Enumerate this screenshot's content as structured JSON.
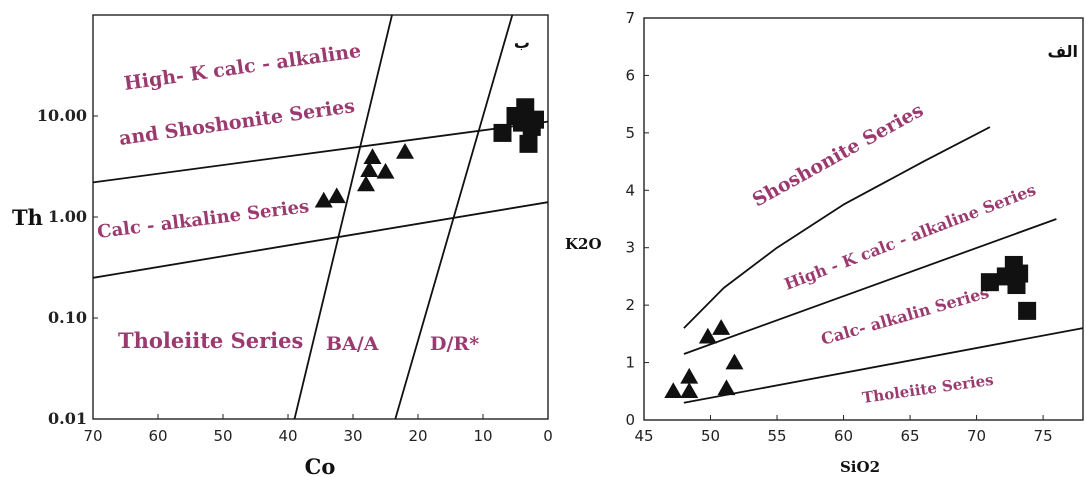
{
  "chart_data": [
    {
      "type": "scatter",
      "panel_label": "ب",
      "xlabel": "Co",
      "ylabel": "Th",
      "xlim": [
        70,
        0
      ],
      "ylim": [
        0.01,
        100
      ],
      "y_scale": "log",
      "x_ticks": [
        "70",
        "60",
        "50",
        "40",
        "30",
        "20",
        "10",
        "0"
      ],
      "y_ticks": [
        "10.00",
        "1.00",
        "0.10",
        "0.01"
      ],
      "region_labels": {
        "highk": "High- K calc - alkaline",
        "shoshonite": "and Shoshonite Series",
        "calc": "Calc - alkaline Series",
        "tholeiite": "Tholeiite Series",
        "ba": "BA/A",
        "dr": "D/R*"
      },
      "boundaries": [
        {
          "points": [
            [
              70,
              2.2
            ],
            [
              0,
              8.8
            ]
          ]
        },
        {
          "points": [
            [
              70,
              0.25
            ],
            [
              0,
              1.4
            ]
          ]
        },
        {
          "points": [
            [
              39,
              0.01
            ],
            [
              24,
              100
            ]
          ]
        },
        {
          "points": [
            [
              23.5,
              0.01
            ],
            [
              5.5,
              100
            ]
          ]
        }
      ],
      "series": [
        {
          "marker": "triangle",
          "points": [
            [
              34.5,
              1.45
            ],
            [
              32.5,
              1.6
            ],
            [
              28,
              2.1
            ],
            [
              27.5,
              2.9
            ],
            [
              27,
              3.9
            ],
            [
              25,
              2.8
            ],
            [
              22,
              4.4
            ]
          ]
        },
        {
          "marker": "square",
          "points": [
            [
              7,
              6.8
            ],
            [
              5,
              10.0
            ],
            [
              3.5,
              12.2
            ],
            [
              2.5,
              7.8
            ],
            [
              3,
              5.3
            ],
            [
              4,
              8.6
            ],
            [
              2,
              9.2
            ]
          ]
        }
      ]
    },
    {
      "type": "scatter",
      "panel_label": "الف",
      "xlabel": "SiO2",
      "ylabel": "K2O",
      "xlim": [
        45,
        78
      ],
      "ylim": [
        0,
        7
      ],
      "x_ticks": [
        "45",
        "50",
        "55",
        "60",
        "65",
        "70",
        "75"
      ],
      "y_ticks": [
        "0",
        "1",
        "2",
        "3",
        "4",
        "5",
        "6",
        "7"
      ],
      "region_labels": {
        "shoshonite": "Shoshonite Series",
        "highk": "High - K calc - alkaline Series",
        "calc": "Calc- alkalin Series",
        "tholeiite": "Tholeiite Series"
      },
      "boundaries": [
        {
          "points": [
            [
              48,
              1.6
            ],
            [
              51,
              2.3
            ],
            [
              55,
              3.0
            ],
            [
              60,
              3.75
            ],
            [
              66,
              4.5
            ],
            [
              71,
              5.1
            ]
          ]
        },
        {
          "points": [
            [
              48,
              1.15
            ],
            [
              76,
              3.5
            ]
          ]
        },
        {
          "points": [
            [
              48,
              0.3
            ],
            [
              78,
              1.6
            ]
          ]
        }
      ],
      "series": [
        {
          "marker": "triangle",
          "points": [
            [
              47.2,
              0.5
            ],
            [
              48.4,
              0.5
            ],
            [
              48.4,
              0.75
            ],
            [
              49.8,
              1.45
            ],
            [
              50.8,
              1.6
            ],
            [
              51.2,
              0.55
            ],
            [
              51.8,
              1.0
            ]
          ]
        },
        {
          "marker": "square",
          "points": [
            [
              71,
              2.4
            ],
            [
              72.2,
              2.5
            ],
            [
              72.8,
              2.7
            ],
            [
              73,
              2.35
            ],
            [
              73.2,
              2.55
            ],
            [
              73.8,
              1.9
            ]
          ]
        }
      ]
    }
  ]
}
